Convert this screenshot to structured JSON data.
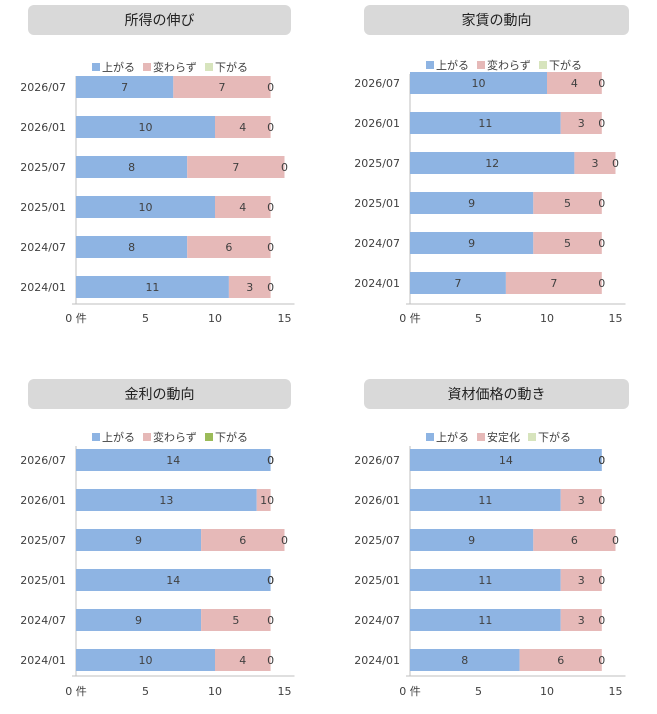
{
  "colors": {
    "up": "#8eb4e3",
    "same": "#e6b9b8",
    "down_green": "#d7e4bd",
    "down_bright": "#9bbb59",
    "axis": "#bfbfbf"
  },
  "chart_data": [
    {
      "type": "bar",
      "stacked": true,
      "orientation": "horizontal",
      "title": "所得の伸び",
      "categories": [
        "2026/07",
        "2026/01",
        "2025/07",
        "2025/01",
        "2024/07",
        "2024/01"
      ],
      "series": [
        {
          "name": "上がる",
          "values": [
            7,
            10,
            8,
            10,
            8,
            11
          ],
          "color": "#8eb4e3"
        },
        {
          "name": "変わらず",
          "values": [
            7,
            4,
            7,
            4,
            6,
            3
          ],
          "color": "#e6b9b8"
        },
        {
          "name": "下がる",
          "values": [
            0,
            0,
            0,
            0,
            0,
            0
          ],
          "color": "#d7e4bd"
        }
      ],
      "xlim": [
        0,
        15
      ],
      "ticks": [
        "0 件",
        "5",
        "10",
        "15"
      ],
      "legend": "top"
    },
    {
      "type": "bar",
      "stacked": true,
      "orientation": "horizontal",
      "title": "家賃の動向",
      "categories": [
        "2026/07",
        "2026/01",
        "2025/07",
        "2025/01",
        "2024/07",
        "2024/01"
      ],
      "series": [
        {
          "name": "上がる",
          "values": [
            10,
            11,
            12,
            9,
            9,
            7
          ],
          "color": "#8eb4e3"
        },
        {
          "name": "変わらず",
          "values": [
            4,
            3,
            3,
            5,
            5,
            7
          ],
          "color": "#e6b9b8"
        },
        {
          "name": "下がる",
          "values": [
            0,
            0,
            0,
            0,
            0,
            0
          ],
          "color": "#d7e4bd"
        }
      ],
      "xlim": [
        0,
        15
      ],
      "ticks": [
        "0 件",
        "5",
        "10",
        "15"
      ],
      "legend": "top"
    },
    {
      "type": "bar",
      "stacked": true,
      "orientation": "horizontal",
      "title": "金利の動向",
      "categories": [
        "2026/07",
        "2026/01",
        "2025/07",
        "2025/01",
        "2024/07",
        "2024/01"
      ],
      "series": [
        {
          "name": "上がる",
          "values": [
            14,
            13,
            9,
            14,
            9,
            10
          ],
          "color": "#8eb4e3"
        },
        {
          "name": "変わらず",
          "values": [
            0,
            1,
            6,
            0,
            5,
            4
          ],
          "color": "#e6b9b8"
        },
        {
          "name": "下がる",
          "values": [
            0,
            0,
            0,
            0,
            0,
            0
          ],
          "color": "#9bbb59"
        }
      ],
      "xlim": [
        0,
        15
      ],
      "ticks": [
        "0 件",
        "5",
        "10",
        "15"
      ],
      "legend": "top"
    },
    {
      "type": "bar",
      "stacked": true,
      "orientation": "horizontal",
      "title": "資材価格の動き",
      "categories": [
        "2026/07",
        "2026/01",
        "2025/07",
        "2025/01",
        "2024/07",
        "2024/01"
      ],
      "series": [
        {
          "name": "上がる",
          "values": [
            14,
            11,
            9,
            11,
            11,
            8
          ],
          "color": "#8eb4e3"
        },
        {
          "name": "安定化",
          "values": [
            0,
            3,
            6,
            3,
            3,
            6
          ],
          "color": "#e6b9b8"
        },
        {
          "name": "下がる",
          "values": [
            0,
            0,
            0,
            0,
            0,
            0
          ],
          "color": "#d7e4bd"
        }
      ],
      "xlim": [
        0,
        15
      ],
      "ticks": [
        "0 件",
        "5",
        "10",
        "15"
      ],
      "legend": "top"
    }
  ]
}
